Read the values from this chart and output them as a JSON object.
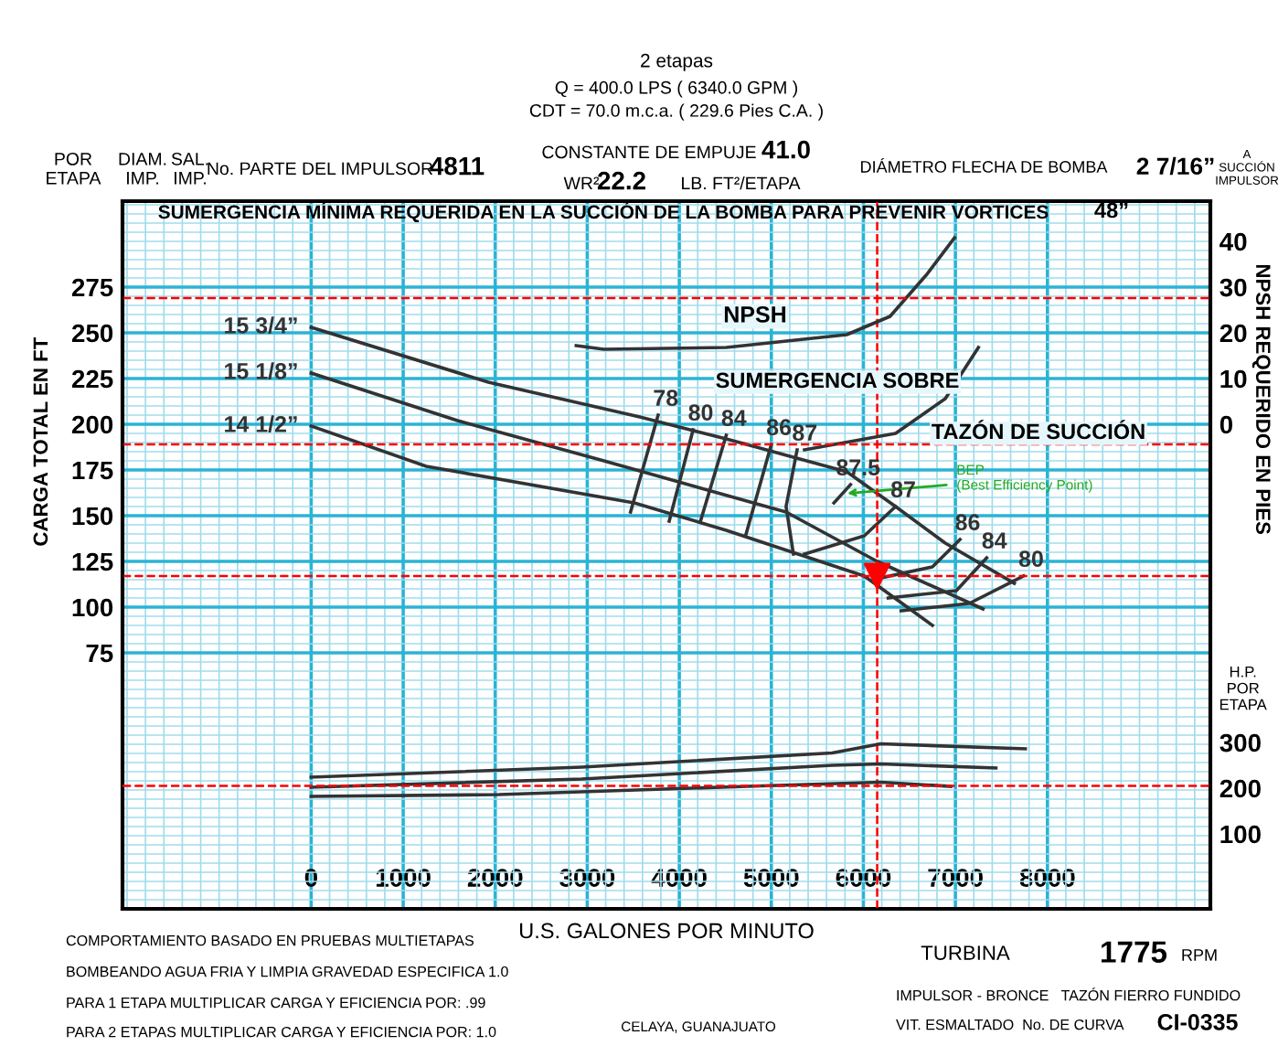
{
  "chart_data": {
    "type": "line",
    "title": "2 etapas",
    "subtitle": "Q = 400.0 LPS ( 6340.0 GPM )\nCDT = 70.0 m.c.a. ( 229.6 Pies C.A. )",
    "xlabel": "U.S. GALONES POR MINUTO",
    "ylabel": "CARGA TOTAL EN FT",
    "y2label": "NPSH REQUERIDO EN PIES",
    "y3label": "H.P.\nPOR\nETAPA",
    "xlim": [
      -2050,
      9770
    ],
    "xticks": [
      0,
      1000,
      2000,
      3000,
      4000,
      5000,
      6000,
      7000,
      8000
    ],
    "ylim": [
      -65,
      322
    ],
    "yticks": [
      75,
      100,
      125,
      150,
      175,
      200,
      225,
      250,
      275
    ],
    "y2lim": [
      -106,
      48.8
    ],
    "y2ticks": [
      0,
      10,
      20,
      30,
      40
    ],
    "y3lim": [
      -64,
      1484
    ],
    "y3ticks": [
      100,
      200,
      300
    ],
    "grid": true,
    "line_style": "solid",
    "series": [
      {
        "name": "15 3/4”",
        "color": "#333333",
        "x": [
          0,
          1925,
          3570,
          4510,
          5820,
          6350,
          6890,
          7640
        ],
        "values": [
          253,
          223,
          204,
          192,
          174,
          155,
          135,
          113
        ]
      },
      {
        "name": "15 1/8”",
        "color": "#333333",
        "x": [
          0,
          1590,
          3180,
          5160,
          6150,
          7300
        ],
        "values": [
          228,
          202,
          180,
          152,
          125,
          99
        ]
      },
      {
        "name": "14 1/2”",
        "color": "#333333",
        "x": [
          0,
          1250,
          3510,
          4510,
          6010,
          6750
        ],
        "values": [
          199,
          177,
          157,
          142,
          117,
          90
        ]
      },
      {
        "name": "78",
        "color": "#333333",
        "x": [
          3770,
          3470
        ],
        "values": [
          205,
          152
        ]
      },
      {
        "name": "80",
        "color": "#333333",
        "x": [
          4150,
          3890
        ],
        "values": [
          197,
          147
        ]
      },
      {
        "name": "84",
        "color": "#333333",
        "x": [
          4510,
          4230
        ],
        "values": [
          194,
          147
        ]
      },
      {
        "name": "86",
        "color": "#333333",
        "x": [
          5000,
          4720
        ],
        "values": [
          189,
          139
        ]
      },
      {
        "name": "87",
        "color": "#333333",
        "x": [
          5280,
          5160,
          5240
        ],
        "values": [
          186,
          155,
          129
        ]
      },
      {
        "name": "87.5",
        "color": "#333333",
        "x": [
          5860,
          5680
        ],
        "values": [
          167,
          157
        ]
      },
      {
        "name": "87",
        "color": "#333333",
        "x": [
          5360,
          6010,
          6350
        ],
        "values": [
          129,
          139,
          155
        ]
      },
      {
        "name": "86",
        "color": "#333333",
        "x": [
          6190,
          6750,
          7050
        ],
        "values": [
          116,
          122,
          137
        ]
      },
      {
        "name": "84",
        "color": "#333333",
        "x": [
          6270,
          7010,
          7340
        ],
        "values": [
          105,
          109,
          127
        ]
      },
      {
        "name": "80",
        "color": "#333333",
        "x": [
          6410,
          7150,
          7740
        ],
        "values": [
          98,
          102,
          117
        ]
      },
      {
        "color": "#333333",
        "axis": "y2",
        "x": [
          2880,
          3180,
          4510,
          5820,
          6290,
          6690,
          6990
        ],
        "values": [
          17.2,
          16.4,
          16.8,
          19.6,
          23.6,
          32.8,
          40.8
        ]
      },
      {
        "color": "#333333",
        "axis": "y2",
        "x": [
          5360,
          6350,
          6890,
          7250
        ],
        "values": [
          -5.6,
          -2,
          5.6,
          16.8
        ]
      },
      {
        "color": "#333333",
        "axis": "y3",
        "x": [
          0,
          2940,
          5660,
          6190,
          7760
        ],
        "values": [
          224,
          246,
          277,
          297,
          286
        ]
      },
      {
        "color": "#333333",
        "axis": "y3",
        "x": [
          0,
          2940,
          5660,
          6190,
          7440
        ],
        "values": [
          202,
          220,
          250,
          253,
          244
        ]
      },
      {
        "color": "#333333",
        "axis": "y3",
        "x": [
          0,
          2040,
          4740,
          6190,
          6950
        ],
        "values": [
          182,
          186,
          204,
          213,
          204
        ]
      },
      {
        "type": "scatter",
        "marker": "triangle",
        "color": "#ff0000",
        "x": [
          6150
        ],
        "values": [
          117
        ]
      }
    ],
    "ref_lines": [
      {
        "axis": "x",
        "value": 6150,
        "color": "#ff0000",
        "line_style": "dashed"
      },
      {
        "axis": "y",
        "value": 117,
        "color": "#ff0000",
        "line_style": "dashed"
      },
      {
        "axis": "y2",
        "value": 27.6,
        "color": "#ff0000",
        "line_style": "dashed"
      },
      {
        "axis": "y2",
        "value": -4.4,
        "color": "#ff0000",
        "line_style": "dashed"
      },
      {
        "axis": "y3",
        "value": 205,
        "color": "#ff0000",
        "line_style": "dashed"
      }
    ],
    "annotations": [
      {
        "text": "BEP\n(Best Efficiency Point)",
        "x": 5770,
        "y": 162
      },
      "POR\nETAPA",
      "DIAM.\nIMP.",
      "SAL.\nIMP.",
      "No. PARTE DEL IMPULSOR",
      "4811",
      "CONSTANTE DE EMPUJE",
      "41.0",
      "WR²",
      "22.2",
      "LB. FT²/ETAPA",
      "DIÁMETRO FLECHA DE BOMBA",
      "2 7/16”",
      "A\nSUCCIÓN\nIMPULSOR",
      "SUMERGENCIA MÍNIMA REQUERIDA EN LA SUCCIÓN DE LA BOMBA PARA PREVENIR VORTICES",
      "48”",
      "COMPORTAMIENTO BASADO EN PRUEBAS MULTIETAPAS",
      "BOMBEANDO AGUA FRIA Y LIMPIA GRAVEDAD ESPECIFICA 1.0",
      "PARA 1 ETAPA MULTIPLICAR CARGA Y EFICIENCIA POR: .99",
      "PARA 2 ETAPAS MULTIPLICAR CARGA Y EFICIENCIA POR: 1.0",
      "TURBINA",
      "1775",
      "RPM",
      "IMPULSOR - BRONCE   TAZÓN FIERRO FUNDIDO",
      "VIT. ESMALTADO  No. DE CURVA",
      "CI-0335",
      "CELAYA, GUANAJUATO",
      "NPSH",
      "SUMERGENCIA SOBRE",
      "TAZÓN DE SUCCIÓN"
    ]
  }
}
